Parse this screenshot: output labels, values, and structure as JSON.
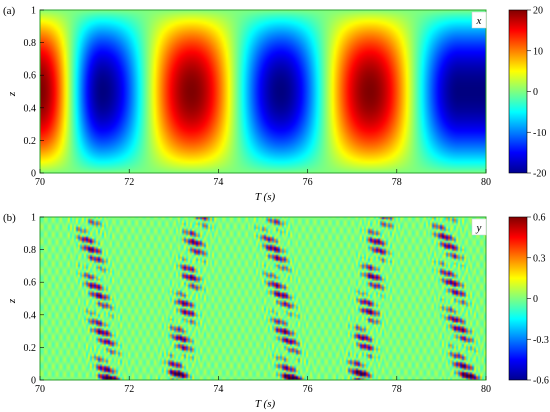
{
  "chart_data": [
    {
      "type": "heatmap",
      "panel_label": "(a)",
      "legend_label": "x",
      "xlabel": "T (s)",
      "ylabel": "z",
      "xlim": [
        70,
        80
      ],
      "ylim": [
        0,
        1
      ],
      "x_ticks": [
        "70",
        "72",
        "74",
        "76",
        "78",
        "80"
      ],
      "y_ticks": [
        "0",
        "0.2",
        "0.4",
        "0.6",
        "0.8",
        "1"
      ],
      "colorbar": {
        "min": -20,
        "max": 20,
        "ticks": [
          "20",
          "10",
          "0",
          "-10",
          "-20"
        ]
      },
      "pattern": {
        "period_s": 4,
        "amplitude": 20,
        "extrema": [
          {
            "t": 70.0,
            "value": 20
          },
          {
            "t": 71.4,
            "value": -20
          },
          {
            "t": 73.4,
            "value": 20
          },
          {
            "t": 75.4,
            "value": -20
          },
          {
            "t": 77.4,
            "value": 20
          },
          {
            "t": 79.4,
            "value": -20
          }
        ],
        "z_profile_peak": 0.5
      }
    },
    {
      "type": "heatmap",
      "panel_label": "(b)",
      "legend_label": "y",
      "xlabel": "T (s)",
      "ylabel": "z",
      "xlim": [
        70,
        80
      ],
      "ylim": [
        0,
        1
      ],
      "x_ticks": [
        "70",
        "72",
        "74",
        "76",
        "78",
        "80"
      ],
      "y_ticks": [
        "0",
        "0.2",
        "0.4",
        "0.6",
        "0.8",
        "1"
      ],
      "colorbar": {
        "min": -0.6,
        "max": 0.6,
        "ticks": [
          "0.6",
          "0.3",
          "0",
          "-0.3",
          "-0.6"
        ]
      },
      "pattern": {
        "background_value": 0,
        "burst_centers_t": [
          71.3,
          73.3,
          75.4,
          77.4,
          79.3
        ],
        "burst_amplitude": 0.6
      }
    }
  ]
}
